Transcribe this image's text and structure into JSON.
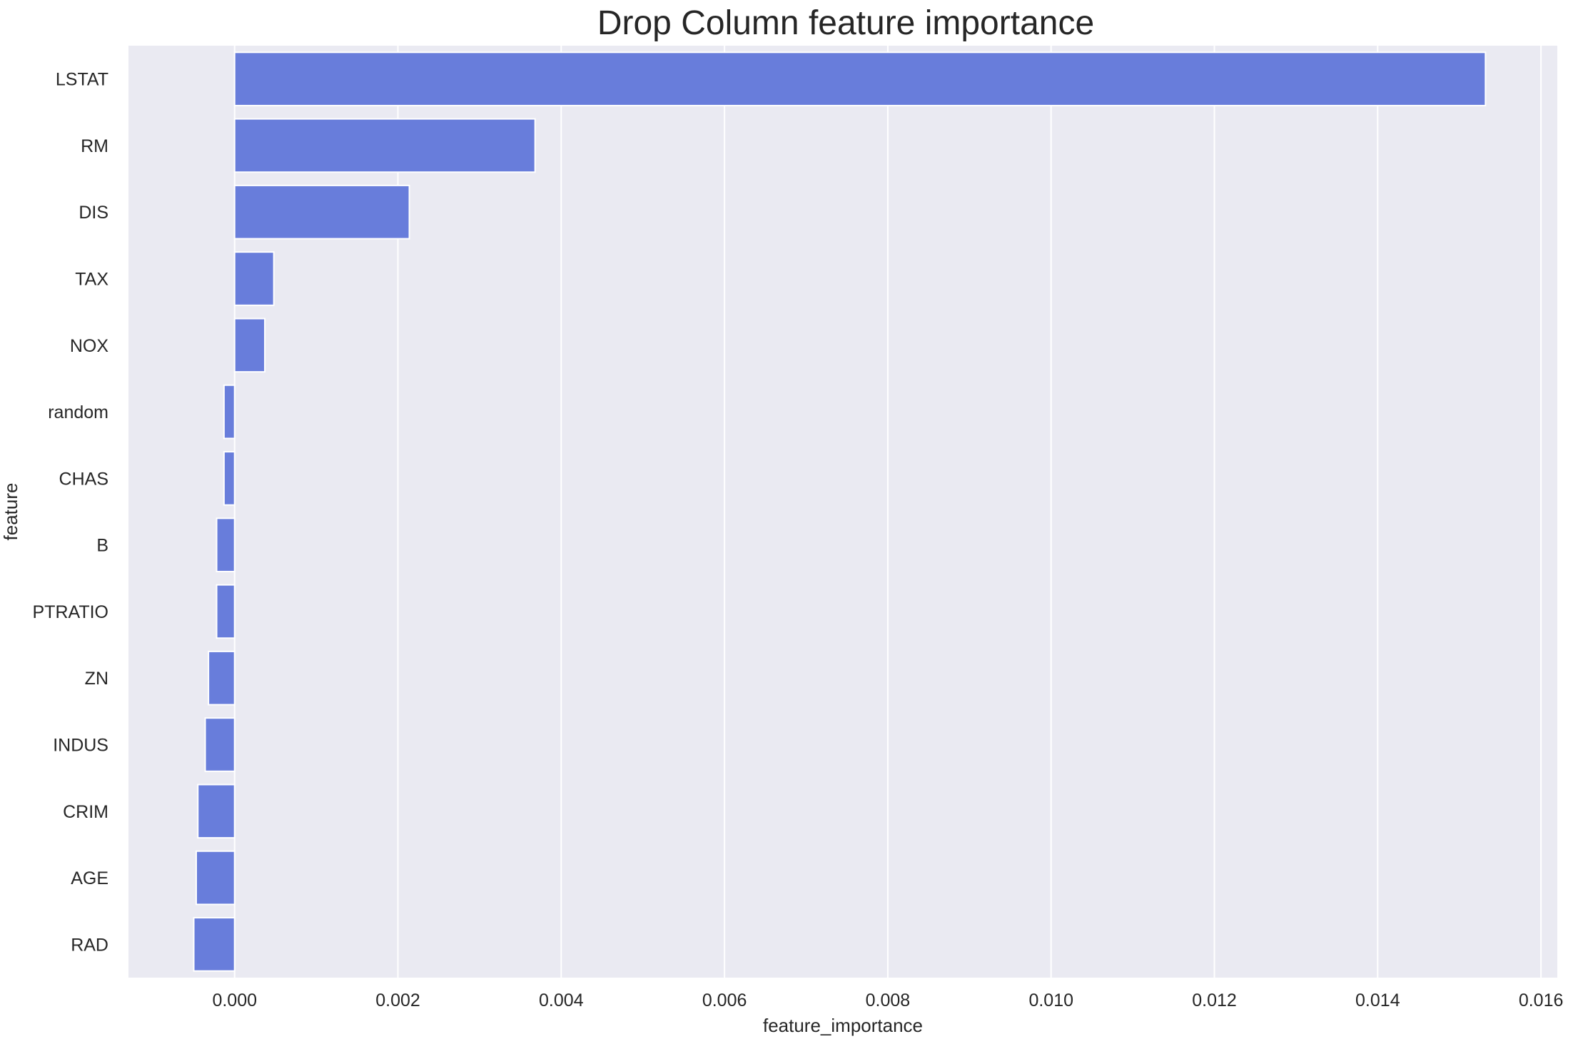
{
  "chart_data": {
    "type": "bar",
    "orientation": "horizontal",
    "title": "Drop Column feature importance",
    "xlabel": "feature_importance",
    "ylabel": "feature",
    "categories": [
      "LSTAT",
      "RM",
      "DIS",
      "TAX",
      "NOX",
      "random",
      "CHAS",
      "B",
      "PTRATIO",
      "ZN",
      "INDUS",
      "CRIM",
      "AGE",
      "RAD"
    ],
    "values": [
      0.01532,
      0.00368,
      0.00214,
      0.00048,
      0.00037,
      -0.00013,
      -0.00013,
      -0.00022,
      -0.00022,
      -0.00032,
      -0.00036,
      -0.00045,
      -0.00047,
      -0.0005
    ],
    "xlim": [
      -0.0013,
      0.0162
    ],
    "xticks": [
      0.0,
      0.002,
      0.004,
      0.006,
      0.008,
      0.01,
      0.012,
      0.014,
      0.016
    ],
    "xtick_labels": [
      "0.000",
      "0.002",
      "0.004",
      "0.006",
      "0.008",
      "0.010",
      "0.012",
      "0.014",
      "0.016"
    ],
    "grid": true,
    "colors": {
      "bar": "#687ddb",
      "background": "#eaeaf2",
      "grid": "#ffffff",
      "text": "#262626"
    }
  }
}
